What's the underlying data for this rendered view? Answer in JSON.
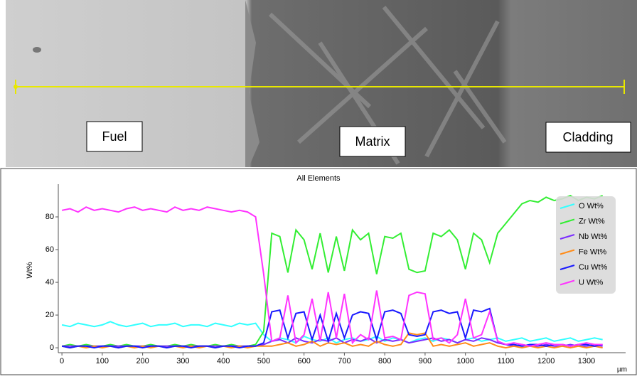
{
  "image": {
    "labels": [
      "Fuel",
      "Matrix",
      "Cladding"
    ]
  },
  "chart_data": {
    "type": "line",
    "title": "All Elements",
    "ylabel": "Wt%",
    "xlabel": "µm",
    "xlim": [
      -9,
      1397
    ],
    "ylim": [
      -3,
      100
    ],
    "xticks": [
      0,
      100,
      200,
      300,
      400,
      500,
      600,
      700,
      800,
      900,
      1000,
      1100,
      1200,
      1300
    ],
    "yticks": [
      0,
      20,
      40,
      60,
      80
    ],
    "legend": "upper right",
    "x": [
      0,
      20,
      40,
      60,
      80,
      100,
      120,
      140,
      160,
      180,
      200,
      220,
      240,
      260,
      280,
      300,
      320,
      340,
      360,
      380,
      400,
      420,
      440,
      460,
      480,
      500,
      520,
      540,
      560,
      580,
      600,
      620,
      640,
      660,
      680,
      700,
      720,
      740,
      760,
      780,
      800,
      820,
      840,
      860,
      880,
      900,
      920,
      940,
      960,
      980,
      1000,
      1020,
      1040,
      1060,
      1080,
      1100,
      1120,
      1140,
      1160,
      1180,
      1200,
      1220,
      1240,
      1260,
      1280,
      1300,
      1320,
      1340
    ],
    "series": [
      {
        "name": "O Wt%",
        "color": "#33ffff",
        "values": [
          14,
          13,
          15,
          14,
          13,
          14,
          16,
          14,
          13,
          14,
          15,
          13,
          14,
          14,
          15,
          13,
          14,
          14,
          13,
          15,
          14,
          13,
          15,
          14,
          15,
          8,
          4,
          6,
          5,
          3,
          7,
          5,
          4,
          6,
          3,
          5,
          6,
          4,
          5,
          7,
          4,
          6,
          5,
          3,
          5,
          6,
          4,
          6,
          5,
          3,
          5,
          6,
          4,
          5,
          6,
          4,
          5,
          6,
          4,
          5,
          6,
          4,
          5,
          6,
          4,
          5,
          6,
          5
        ]
      },
      {
        "name": "Zr Wt%",
        "color": "#33ee33",
        "values": [
          1,
          2,
          1,
          2,
          1,
          1,
          2,
          1,
          2,
          1,
          1,
          2,
          1,
          1,
          2,
          1,
          2,
          1,
          1,
          2,
          1,
          2,
          1,
          1,
          2,
          10,
          70,
          68,
          46,
          72,
          66,
          48,
          70,
          46,
          68,
          47,
          72,
          66,
          70,
          45,
          68,
          67,
          70,
          48,
          46,
          47,
          70,
          68,
          72,
          66,
          48,
          70,
          66,
          52,
          70,
          76,
          82,
          88,
          90,
          89,
          92,
          90,
          91,
          93,
          90,
          92,
          91,
          93
        ]
      },
      {
        "name": "Nb Wt%",
        "color": "#7a2bff",
        "values": [
          1,
          1,
          1,
          1,
          1,
          1,
          1,
          1,
          1,
          1,
          1,
          1,
          1,
          1,
          1,
          1,
          1,
          1,
          1,
          1,
          1,
          1,
          1,
          1,
          1,
          2,
          4,
          5,
          3,
          6,
          4,
          3,
          5,
          4,
          6,
          3,
          5,
          4,
          6,
          3,
          5,
          4,
          5,
          3,
          4,
          5,
          6,
          4,
          5,
          3,
          5,
          4,
          6,
          5,
          3,
          2,
          1,
          2,
          1,
          1,
          2,
          1,
          1,
          2,
          1,
          1,
          2,
          1
        ]
      },
      {
        "name": "Fe Wt%",
        "color": "#ff8c1a",
        "values": [
          1,
          0,
          1,
          0,
          1,
          0,
          1,
          0,
          1,
          0,
          1,
          0,
          1,
          0,
          1,
          0,
          1,
          0,
          1,
          0,
          1,
          0,
          1,
          0,
          1,
          1,
          1,
          2,
          3,
          1,
          2,
          4,
          1,
          3,
          2,
          3,
          1,
          2,
          1,
          4,
          2,
          1,
          2,
          9,
          8,
          9,
          1,
          2,
          1,
          2,
          3,
          1,
          2,
          3,
          1,
          0,
          1,
          0,
          1,
          0,
          1,
          0,
          1,
          0,
          1,
          0,
          1,
          0
        ]
      },
      {
        "name": "Cu Wt%",
        "color": "#1a1aff",
        "values": [
          1,
          0,
          1,
          1,
          0,
          1,
          1,
          0,
          1,
          1,
          0,
          1,
          1,
          0,
          1,
          1,
          0,
          1,
          1,
          0,
          1,
          1,
          0,
          1,
          1,
          3,
          22,
          23,
          6,
          21,
          22,
          5,
          20,
          4,
          21,
          6,
          20,
          22,
          21,
          5,
          22,
          23,
          21,
          8,
          7,
          8,
          22,
          23,
          21,
          22,
          6,
          23,
          22,
          24,
          4,
          2,
          2,
          1,
          2,
          2,
          1,
          2,
          2,
          1,
          2,
          2,
          1,
          2
        ]
      },
      {
        "name": "U Wt%",
        "color": "#ff33ff",
        "values": [
          84,
          85,
          83,
          86,
          84,
          85,
          84,
          83,
          85,
          86,
          84,
          85,
          84,
          83,
          86,
          84,
          85,
          84,
          86,
          85,
          84,
          83,
          84,
          83,
          80,
          45,
          4,
          6,
          32,
          3,
          8,
          30,
          4,
          34,
          6,
          33,
          3,
          8,
          5,
          35,
          6,
          7,
          5,
          32,
          34,
          33,
          5,
          6,
          3,
          8,
          30,
          6,
          8,
          22,
          4,
          2,
          3,
          2,
          1,
          2,
          3,
          2,
          2,
          1,
          2,
          3,
          2,
          2
        ]
      }
    ]
  }
}
